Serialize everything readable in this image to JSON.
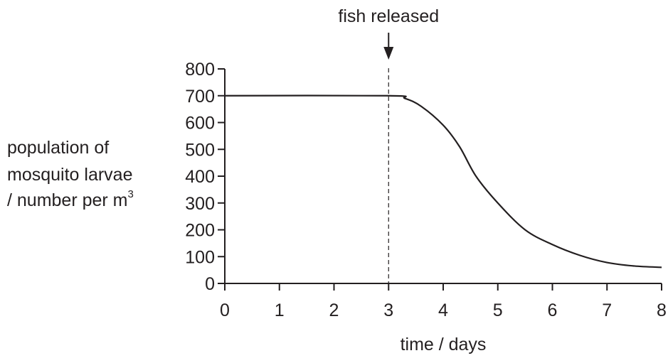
{
  "chart_data": {
    "type": "line",
    "xlabel": "time / days",
    "ylabel_lines": [
      "population of",
      "mosquito larvae",
      "/ number per m"
    ],
    "ylabel_superscript": "3",
    "xlim": [
      0,
      8
    ],
    "ylim": [
      0,
      800
    ],
    "x_ticks": [
      0,
      1,
      2,
      3,
      4,
      5,
      6,
      7,
      8
    ],
    "y_ticks": [
      0,
      100,
      200,
      300,
      400,
      500,
      600,
      700,
      800
    ],
    "grid": false,
    "annotation": {
      "text": "fish released",
      "x": 3
    },
    "series": [
      {
        "points": [
          [
            0,
            700
          ],
          [
            3,
            700
          ],
          [
            3.3,
            690
          ],
          [
            3.6,
            660
          ],
          [
            4.0,
            590
          ],
          [
            4.3,
            510
          ],
          [
            4.6,
            400
          ],
          [
            5.0,
            300
          ],
          [
            5.5,
            200
          ],
          [
            6.0,
            145
          ],
          [
            6.5,
            105
          ],
          [
            7.0,
            78
          ],
          [
            7.5,
            65
          ],
          [
            8.0,
            60
          ]
        ]
      }
    ],
    "colors": {
      "line": "#231f20"
    }
  }
}
